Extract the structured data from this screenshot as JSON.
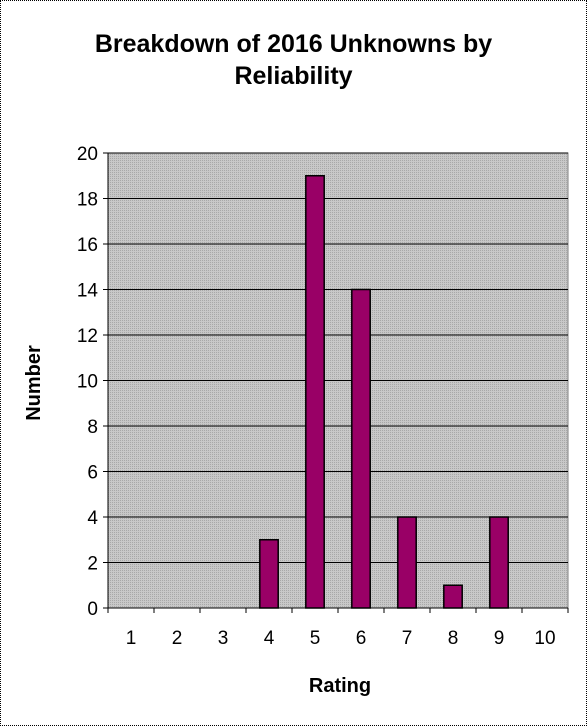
{
  "chart_data": {
    "type": "bar",
    "title": "Breakdown of 2016 Unknowns by\nReliability",
    "xlabel": "Rating",
    "ylabel": "Number",
    "categories": [
      "1",
      "2",
      "3",
      "4",
      "5",
      "6",
      "7",
      "8",
      "9",
      "10"
    ],
    "values": [
      0,
      0,
      0,
      3,
      19,
      14,
      4,
      1,
      4,
      0
    ],
    "ylim": [
      0,
      20
    ],
    "yticks": [
      "0",
      "2",
      "4",
      "6",
      "8",
      "10",
      "12",
      "14",
      "16",
      "18",
      "20"
    ],
    "grid": true,
    "legend": "none",
    "colors": {
      "bar_fill": "#990066",
      "bar_stroke": "#000000",
      "plot_background": "#c0c0c0",
      "gridline": "#000000"
    }
  }
}
